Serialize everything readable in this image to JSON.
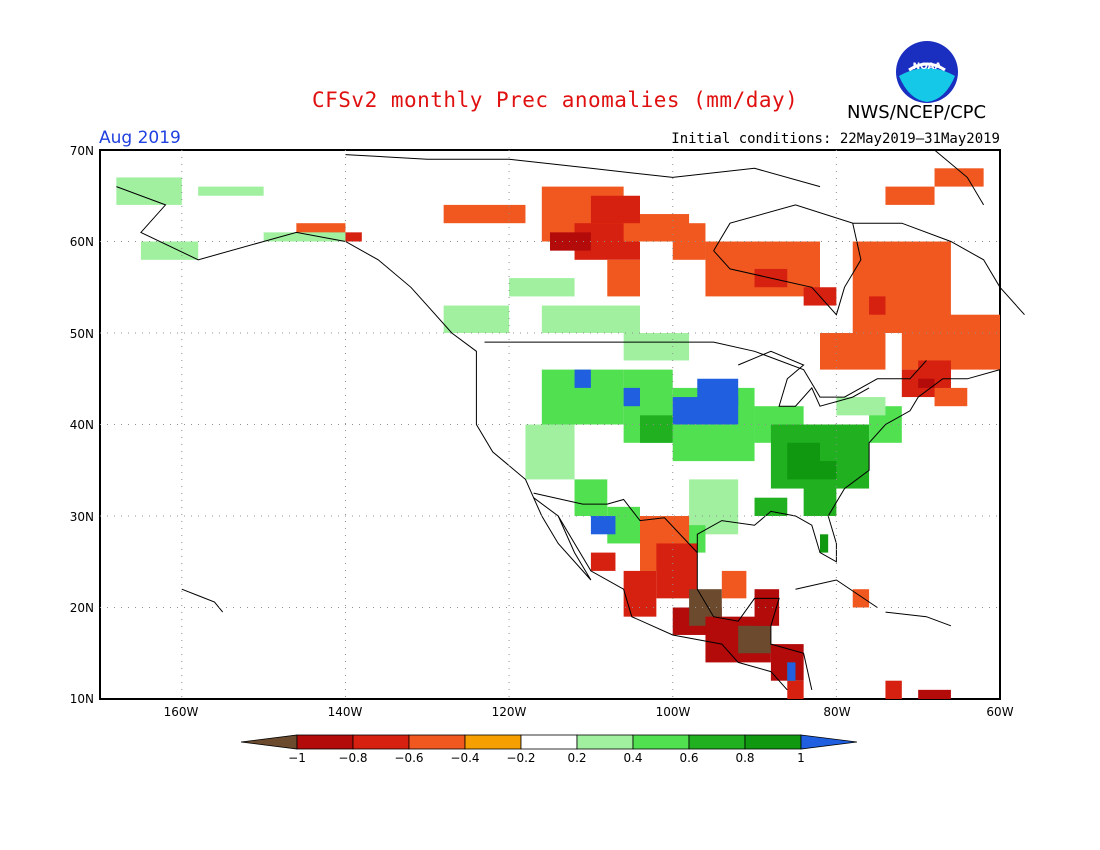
{
  "header": {
    "title": "CFSv2 monthly Prec anomalies (mm/day)",
    "agency": "NWS/NCEP/CPC",
    "period": "Aug 2019",
    "initial_conditions": "Initial conditions: 22May2019–31May2019",
    "logo_text": "NOAA"
  },
  "map": {
    "lat_labels": [
      "70N",
      "60N",
      "50N",
      "40N",
      "30N",
      "20N",
      "10N"
    ],
    "lon_labels": [
      "160W",
      "140W",
      "120W",
      "100W",
      "80W",
      "60W"
    ],
    "colors": {
      "land_outline": "#000000",
      "grid_dots": "#808080"
    }
  },
  "colorbar": {
    "labels": [
      "−1",
      "−0.8",
      "−0.6",
      "−0.4",
      "−0.2",
      "0.2",
      "0.4",
      "0.6",
      "0.8",
      "1"
    ],
    "colors": [
      "#6b4a2e",
      "#b30a0a",
      "#d62010",
      "#f05820",
      "#f5a000",
      "#ffffff",
      "#a0f0a0",
      "#50e050",
      "#20b020",
      "#109810",
      "#2060e0"
    ]
  },
  "anomaly_regions": [
    {
      "name": "mexico-central-america",
      "category": "<=-1 to -0.6",
      "color": "#b30a0a"
    },
    {
      "name": "us-midwest",
      "category": ">=1",
      "color": "#2060e0"
    },
    {
      "name": "eastern-us",
      "category": "0.4 to 0.8",
      "color": "#20b020"
    },
    {
      "name": "canada-north",
      "category": "-0.4 to -0.2",
      "color": "#f5a000"
    }
  ]
}
